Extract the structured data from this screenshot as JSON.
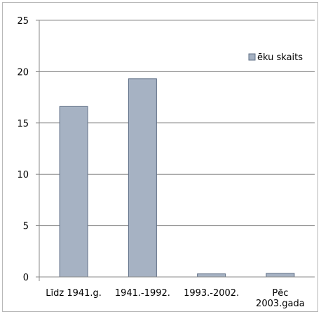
{
  "chart_data": {
    "type": "bar",
    "categories": [
      "Līdz 1941.g.",
      "1941.-1992.",
      "1993.-2002.",
      "Pēc 2003.gada"
    ],
    "category_lines": [
      [
        "Līdz 1941.g."
      ],
      [
        "1941.-1992."
      ],
      [
        "1993.-2002."
      ],
      [
        "Pēc",
        "2003.gada"
      ]
    ],
    "series": [
      {
        "name": "ēku skaits",
        "values": [
          16.6,
          19.3,
          0.3,
          0.35
        ]
      }
    ],
    "ylim": [
      0,
      25
    ],
    "yticks": [
      0,
      5,
      10,
      15,
      20,
      25
    ],
    "grid": true,
    "legend_position": "top-right",
    "colors": {
      "bar_fill": "#a6b2c3",
      "bar_stroke": "#5f6f86",
      "grid": "#8a8a8a",
      "axis": "#8a8a8a",
      "frame": "#b8b8b8"
    }
  }
}
